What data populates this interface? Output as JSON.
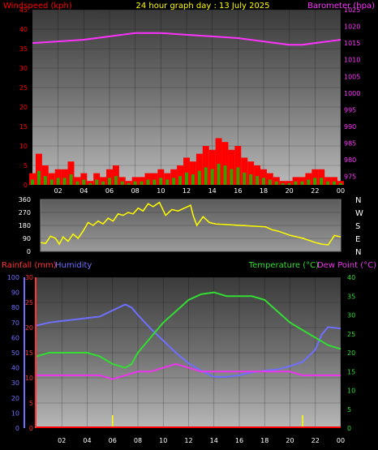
{
  "header": {
    "left": "Windspeed (kph)",
    "center": "24 hour graph day : 13 July 2025",
    "right": "Barometer (hpa)"
  },
  "mid_header": {
    "left": "Rainfall (mm)",
    "left2": "Humidity",
    "right": "Temperature (°C)",
    "right2": "Dew Point (°C)"
  },
  "colors": {
    "wind": "#ff0000",
    "gust_fill": "#00cc00",
    "barometer": "#ff33ff",
    "direction": "#ffff00",
    "humidity": "#6f6fff",
    "temperature": "#33dd33",
    "dewpoint": "#ee33ee",
    "rainfall": "#ff0000",
    "rain_axis": "#ff3333",
    "humidity_axis": "#6f6fff"
  },
  "chart_data": [
    {
      "type": "line",
      "title": "24 hour graph day : 13 July 2025",
      "x_ticks": [
        "02",
        "04",
        "06",
        "08",
        "10",
        "12",
        "14",
        "16",
        "18",
        "20",
        "22",
        "00"
      ],
      "series": [
        {
          "name": "Windspeed (kph)",
          "axis": "left",
          "ylim": [
            0,
            45
          ],
          "y_ticks": [
            "0",
            "5",
            "10",
            "15",
            "20",
            "25",
            "30",
            "35",
            "40",
            "45"
          ],
          "x": [
            0,
            0.5,
            1,
            1.5,
            2,
            2.5,
            3,
            3.5,
            4,
            4.5,
            5,
            5.5,
            6,
            6.5,
            7,
            7.5,
            8,
            8.5,
            9,
            9.5,
            10,
            10.5,
            11,
            11.5,
            12,
            12.5,
            13,
            13.5,
            14,
            14.5,
            15,
            15.5,
            16,
            16.5,
            17,
            17.5,
            18,
            18.5,
            19,
            19.5,
            20,
            20.5,
            21,
            21.5,
            22,
            22.5,
            23,
            23.5,
            24
          ],
          "values": [
            3,
            8,
            5,
            3,
            4,
            4,
            6,
            2,
            3,
            1,
            3,
            2,
            4,
            5,
            2,
            1,
            2,
            2,
            3,
            3,
            4,
            3,
            4,
            5,
            7,
            6,
            8,
            10,
            9,
            12,
            11,
            9,
            10,
            7,
            6,
            5,
            4,
            3,
            2,
            1,
            1,
            2,
            2,
            3,
            4,
            4,
            2,
            2,
            1
          ]
        },
        {
          "name": "Barometer (hpa)",
          "axis": "right",
          "ylim": [
            972.5,
            1025
          ],
          "y_ticks": [
            "975",
            "980",
            "985",
            "990",
            "995",
            "1000",
            "1005",
            "1010",
            "1015",
            "1020",
            "1025"
          ],
          "x": [
            0,
            2,
            4,
            6,
            8,
            9,
            10,
            12,
            14,
            16,
            18,
            20,
            21,
            22,
            23,
            24
          ],
          "values": [
            1015,
            1015.5,
            1016,
            1017,
            1018,
            1018,
            1018,
            1017.5,
            1017,
            1016.5,
            1015.5,
            1014.5,
            1014.5,
            1015,
            1015.5,
            1016
          ]
        }
      ]
    },
    {
      "type": "scatter",
      "name": "Wind direction",
      "y_ticks": [
        "360",
        "270",
        "180",
        "90",
        "0"
      ],
      "compass": [
        "N",
        "W",
        "S",
        "E",
        "N"
      ],
      "ylim": [
        0,
        360
      ],
      "x": [
        0,
        0.4,
        0.8,
        1.2,
        1.5,
        1.8,
        2.2,
        2.6,
        3,
        3.4,
        3.8,
        4.2,
        4.6,
        5,
        5.4,
        5.8,
        6.2,
        6.6,
        7,
        7.4,
        7.8,
        8.2,
        8.6,
        9,
        9.5,
        10,
        10.5,
        11,
        11.5,
        12,
        12.2,
        12.5,
        13,
        13.5,
        14,
        15,
        16,
        17,
        18,
        18.5,
        19,
        20,
        21,
        22,
        22.5,
        23,
        23.5,
        24
      ],
      "values": [
        60,
        55,
        105,
        90,
        50,
        100,
        70,
        120,
        90,
        140,
        200,
        180,
        210,
        190,
        230,
        210,
        260,
        250,
        270,
        260,
        300,
        280,
        330,
        310,
        340,
        250,
        290,
        280,
        300,
        320,
        250,
        180,
        240,
        200,
        190,
        185,
        180,
        175,
        170,
        150,
        140,
        110,
        90,
        60,
        50,
        45,
        110,
        100
      ]
    },
    {
      "type": "line",
      "x_ticks": [
        "02",
        "04",
        "06",
        "08",
        "10",
        "12",
        "14",
        "16",
        "18",
        "20",
        "22",
        "00"
      ],
      "series": [
        {
          "name": "Humidity",
          "axis": "left",
          "ylim": [
            0,
            100
          ],
          "y_ticks": [
            "0",
            "10",
            "20",
            "30",
            "40",
            "50",
            "60",
            "70",
            "80",
            "90",
            "100"
          ],
          "x": [
            0,
            1,
            2,
            3,
            4,
            5,
            6,
            7,
            7.5,
            8,
            9,
            10,
            11,
            12,
            13,
            14,
            15,
            16,
            17,
            18,
            19,
            20,
            21,
            22,
            22.5,
            23,
            24
          ],
          "values": [
            68,
            70,
            71,
            72,
            73,
            74,
            78,
            82,
            80,
            75,
            66,
            58,
            50,
            43,
            38,
            34,
            34,
            35,
            37,
            38,
            39,
            41,
            44,
            52,
            62,
            67,
            66
          ]
        },
        {
          "name": "Rainfall (mm)",
          "axis": "left2",
          "ylim": [
            0,
            30
          ],
          "y_ticks": [
            "0",
            "5",
            "10",
            "15",
            "20",
            "25",
            "30"
          ],
          "x": [
            0,
            24
          ],
          "values": [
            0,
            0
          ]
        },
        {
          "name": "Temperature (°C)",
          "axis": "right",
          "ylim": [
            0,
            40
          ],
          "y_ticks": [
            "0",
            "5",
            "10",
            "15",
            "20",
            "25",
            "30",
            "35",
            "40"
          ],
          "x": [
            0,
            1,
            2,
            3,
            4,
            5,
            6,
            7,
            7.5,
            8,
            9,
            10,
            11,
            12,
            13,
            14,
            15,
            16,
            17,
            18,
            19,
            20,
            21,
            22,
            23,
            24
          ],
          "values": [
            19,
            20,
            20,
            20,
            20,
            19,
            17,
            16,
            17,
            20,
            24,
            28,
            31,
            34,
            35.5,
            36,
            35,
            35,
            35,
            34,
            31,
            28,
            26,
            24,
            22,
            21
          ]
        },
        {
          "name": "Dew Point (°C)",
          "axis": "right",
          "ylim": [
            0,
            40
          ],
          "x": [
            0,
            1,
            2,
            3,
            4,
            5,
            6,
            7,
            8,
            9,
            10,
            11,
            12,
            13,
            14,
            15,
            16,
            17,
            18,
            19,
            20,
            21,
            22,
            23,
            24
          ],
          "values": [
            14,
            14,
            14,
            14,
            14,
            14,
            13,
            14,
            15,
            15,
            16,
            17,
            16,
            15,
            15,
            15,
            15,
            15,
            15,
            15,
            15,
            14,
            14,
            14,
            14
          ]
        }
      ]
    }
  ]
}
